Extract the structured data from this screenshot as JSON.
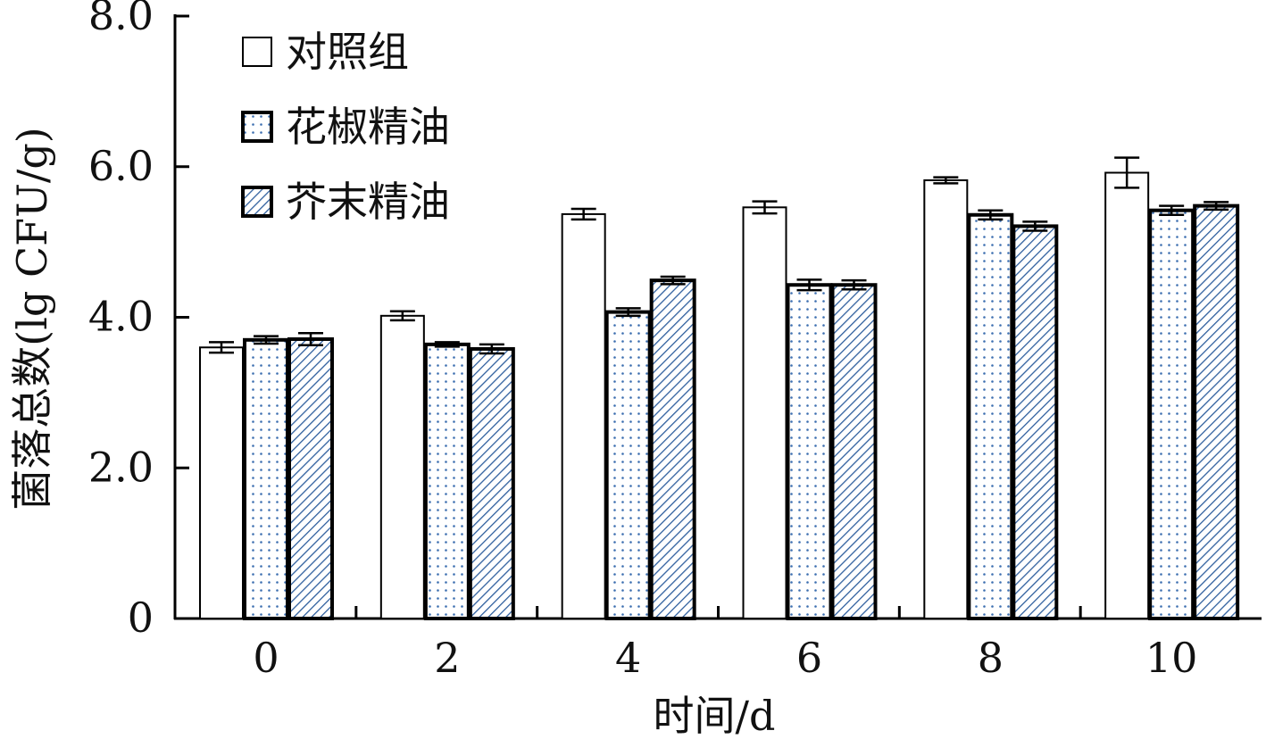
{
  "chart_data": {
    "type": "bar",
    "title": "",
    "xlabel": "时间/d",
    "ylabel": "菌落总数(lg CFU/g)",
    "categories": [
      "0",
      "2",
      "4",
      "6",
      "8",
      "10"
    ],
    "y_ticks": [
      "0",
      "2.0",
      "4.0",
      "6.0",
      "8.0"
    ],
    "ylim": [
      0,
      8
    ],
    "grid": false,
    "legend_position": "top-left",
    "series": [
      {
        "name": "对照组",
        "pattern": "plain",
        "fill": "#ffffff",
        "values": [
          3.6,
          4.02,
          5.37,
          5.46,
          5.82,
          5.92
        ],
        "errors": [
          0.07,
          0.06,
          0.07,
          0.08,
          0.04,
          0.2
        ]
      },
      {
        "name": "花椒精油",
        "pattern": "dots",
        "fill": "#ffffff",
        "pattern_color": "#3d6fb0",
        "values": [
          3.7,
          3.64,
          4.07,
          4.43,
          5.36,
          5.42
        ],
        "errors": [
          0.05,
          0.03,
          0.05,
          0.07,
          0.06,
          0.06
        ]
      },
      {
        "name": "芥末精油",
        "pattern": "hatch",
        "fill": "#ffffff",
        "pattern_color": "#2f5f9e",
        "values": [
          3.71,
          3.58,
          4.49,
          4.43,
          5.21,
          5.48
        ],
        "errors": [
          0.08,
          0.06,
          0.05,
          0.06,
          0.06,
          0.05
        ]
      }
    ]
  }
}
